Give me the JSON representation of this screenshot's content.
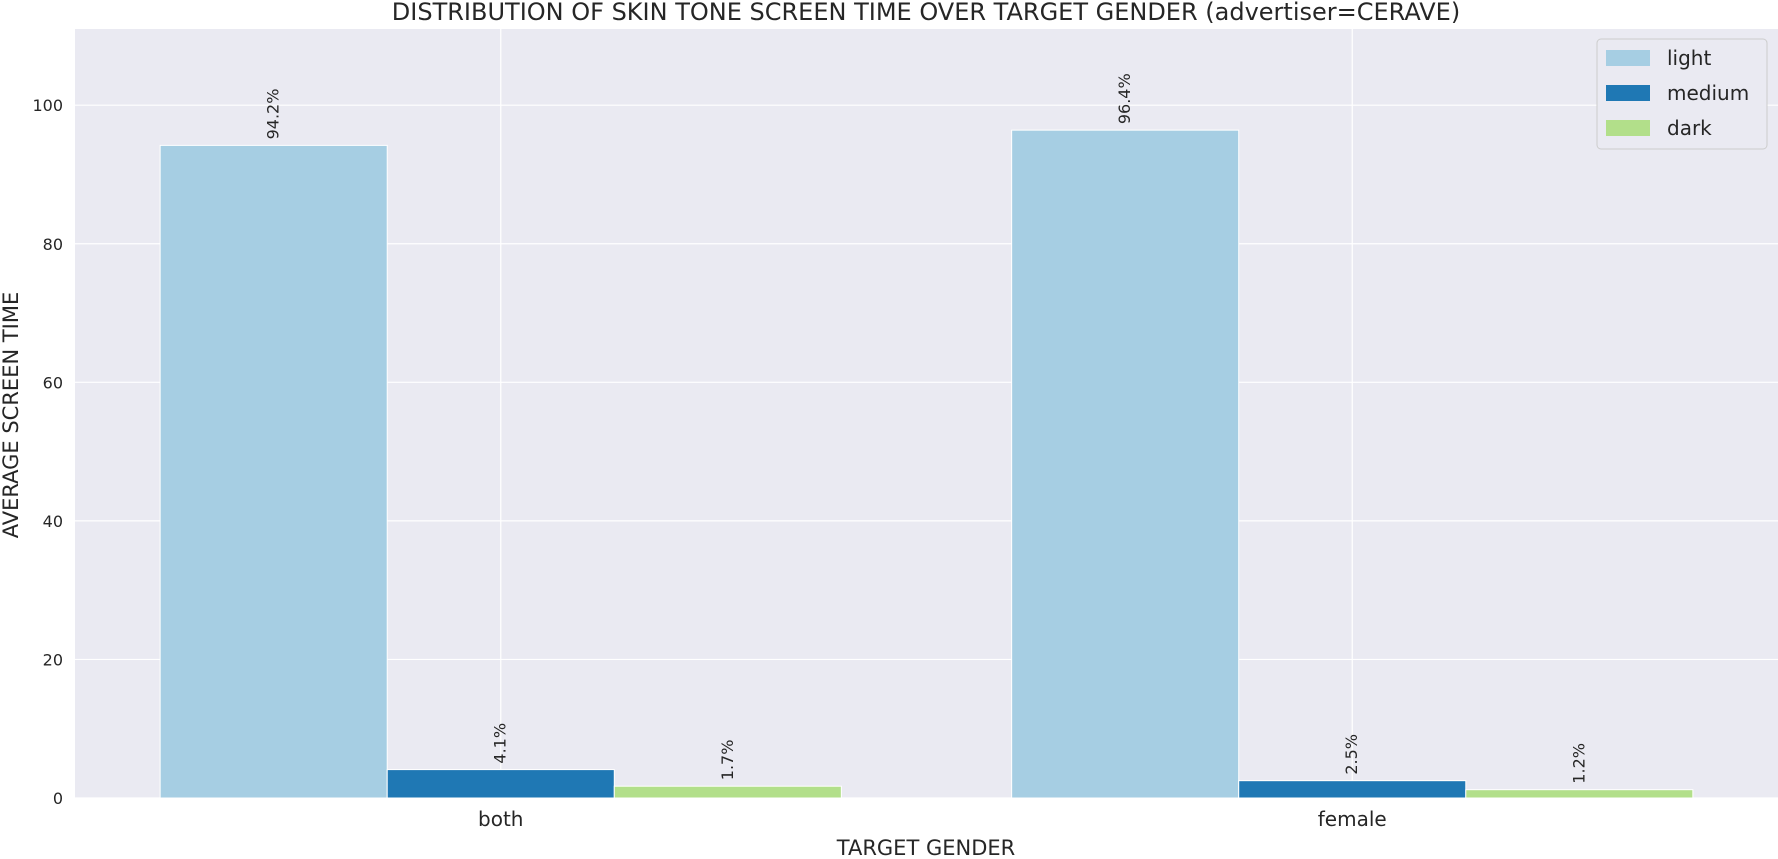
{
  "chart_data": {
    "type": "bar",
    "title": "DISTRIBUTION OF SKIN TONE SCREEN TIME OVER TARGET GENDER (advertiser=CERAVE)",
    "xlabel": "TARGET GENDER",
    "ylabel": "AVERAGE SCREEN TIME",
    "categories": [
      "both",
      "female"
    ],
    "series": [
      {
        "name": "light",
        "color": "#a6cee3",
        "values": [
          94.2,
          96.4
        ],
        "labels": [
          "94.2%",
          "96.4%"
        ]
      },
      {
        "name": "medium",
        "color": "#1f78b4",
        "values": [
          4.1,
          2.5
        ],
        "labels": [
          "4.1%",
          "2.5%"
        ]
      },
      {
        "name": "dark",
        "color": "#b2df8a",
        "values": [
          1.7,
          1.2
        ],
        "labels": [
          "1.7%",
          "1.2%"
        ]
      }
    ],
    "ylim": [
      0,
      111
    ],
    "yticks": [
      0,
      20,
      40,
      60,
      80,
      100
    ],
    "grid": true,
    "legend_position": "top-right",
    "background": "#eaeaf2",
    "grid_color": "#ffffff"
  }
}
